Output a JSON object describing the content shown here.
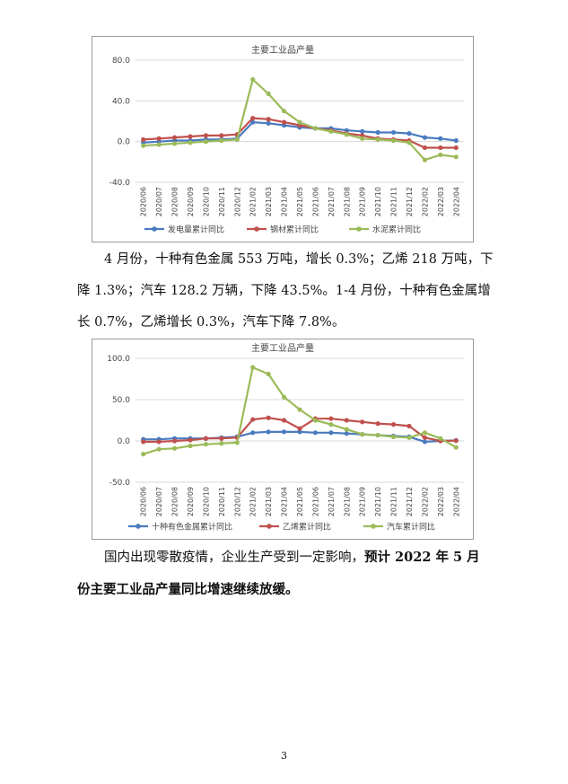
{
  "chart_data": [
    {
      "type": "line",
      "title": "主要工业品产量",
      "categories": [
        "2020/06",
        "2020/07",
        "2020/08",
        "2020/09",
        "2020/10",
        "2020/11",
        "2020/12",
        "2021/02",
        "2021/03",
        "2021/04",
        "2021/05",
        "2021/06",
        "2021/07",
        "2021/08",
        "2021/09",
        "2021/10",
        "2021/11",
        "2021/12",
        "2022/02",
        "2022/03",
        "2022/04"
      ],
      "ylim": [
        -40,
        80
      ],
      "yticks": [
        "80.0",
        "40.0",
        "0.0",
        "-40.0"
      ],
      "ytick_values": [
        80,
        40,
        0,
        -40
      ],
      "grid": true,
      "legend_position": "bottom",
      "series": [
        {
          "name": "发电量累计同比",
          "color": "#4a7bbf",
          "values": [
            -1,
            0,
            1,
            1,
            2,
            2,
            3,
            19,
            18,
            16,
            14,
            13,
            13,
            11,
            10,
            9,
            9,
            8,
            4,
            3,
            1
          ]
        },
        {
          "name": "钢材累计同比",
          "color": "#c0504d",
          "values": [
            2,
            3,
            4,
            5,
            6,
            6,
            7,
            23,
            22,
            19,
            16,
            13,
            11,
            8,
            6,
            3,
            2,
            1,
            -6,
            -6,
            -6
          ]
        },
        {
          "name": "水泥累计同比",
          "color": "#9bbb59",
          "values": [
            -4,
            -3,
            -2,
            -1,
            0,
            1,
            2,
            61,
            47,
            30,
            19,
            13,
            10,
            7,
            3,
            2,
            1,
            -1,
            -18,
            -13,
            -15
          ]
        }
      ]
    },
    {
      "type": "line",
      "title": "主要工业品产量",
      "categories": [
        "2020/06",
        "2020/07",
        "2020/08",
        "2020/09",
        "2020/10",
        "2020/11",
        "2020/12",
        "2021/02",
        "2021/03",
        "2021/04",
        "2021/05",
        "2021/06",
        "2021/07",
        "2021/08",
        "2021/09",
        "2021/10",
        "2021/11",
        "2021/12",
        "2022/02",
        "2022/03",
        "2022/04"
      ],
      "ylim": [
        -50,
        100
      ],
      "yticks": [
        "100.0",
        "50.0",
        "0.0",
        "-50.0"
      ],
      "ytick_values": [
        100,
        50,
        0,
        -50
      ],
      "grid": true,
      "legend_position": "bottom",
      "series": [
        {
          "name": "十种有色金属累计同比",
          "color": "#4a7bbf",
          "values": [
            2,
            2,
            3,
            3,
            3,
            4,
            5,
            10,
            11,
            11,
            11,
            10,
            10,
            9,
            8,
            7,
            6,
            5,
            -1,
            0,
            0.7
          ]
        },
        {
          "name": "乙烯累计同比",
          "color": "#c0504d",
          "values": [
            -1,
            -1,
            0,
            1,
            3,
            3,
            4,
            26,
            28,
            25,
            15,
            27,
            27,
            25,
            23,
            21,
            20,
            18,
            4,
            0,
            0.3
          ]
        },
        {
          "name": "汽车累计同比",
          "color": "#9bbb59",
          "values": [
            -16,
            -10,
            -9,
            -6,
            -4,
            -3,
            -2,
            89,
            81,
            53,
            38,
            25,
            20,
            14,
            8,
            7,
            5,
            4,
            10,
            3,
            -7.8
          ]
        }
      ]
    }
  ],
  "paragraph1": {
    "lines": [
      "4 月份，十种有色金属 553 万吨，增长 0.3%；乙烯 218 万吨，下",
      "降 1.3%；汽车 128.2 万辆，下降 43.5%。1-4 月份，十种有色金属增",
      "长 0.7%，乙烯增长 0.3%，汽车下降 7.8%。"
    ]
  },
  "paragraph2": {
    "line1_normal": "国内出现零散疫情，企业生产受到一定影响，",
    "line1_bold": "预计 2022 年 5 月",
    "line2_bold": "份主要工业品产量同比增速继续放缓。"
  },
  "page_number": "3"
}
